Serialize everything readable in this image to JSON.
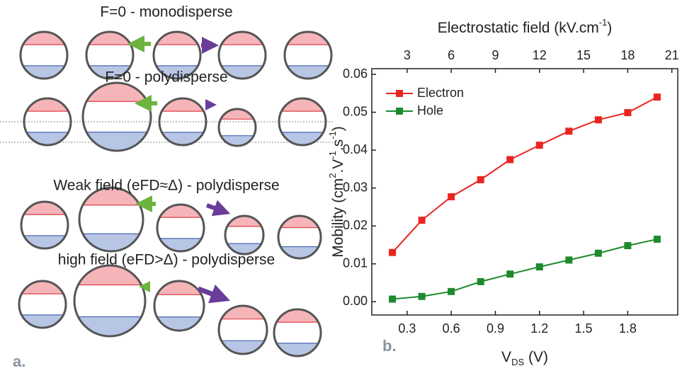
{
  "diagram": {
    "panel_label": "a.",
    "rows": [
      {
        "label": "F=0 - monodisperse"
      },
      {
        "label": "F=0 - polydisperse"
      },
      {
        "label": "Weak field (eFD≈Δ) - polydisperse"
      },
      {
        "label": "high field (eFD>Δ) - polydisperse"
      }
    ]
  },
  "chart_data": {
    "type": "line",
    "panel_label": "b.",
    "xlabel_parts": [
      "V",
      "DS",
      " (V)"
    ],
    "ylabel_parts": [
      "Mobility (cm",
      "2",
      ".V",
      "-1",
      ".s",
      "-1",
      ")"
    ],
    "x2label_parts": [
      "Electrostatic field (kV.cm",
      "-1",
      ")"
    ],
    "x": [
      0.2,
      0.4,
      0.6,
      0.8,
      1.0,
      1.2,
      1.4,
      1.6,
      1.8,
      2.0
    ],
    "series": [
      {
        "name": "Electron",
        "color": "#e8261f",
        "values": [
          0.013,
          0.0215,
          0.0277,
          0.0322,
          0.0375,
          0.0413,
          0.045,
          0.048,
          0.0499,
          0.054
        ]
      },
      {
        "name": "Hole",
        "color": "#1e8a2e",
        "values": [
          0.0007,
          0.0014,
          0.0027,
          0.0053,
          0.0073,
          0.0092,
          0.011,
          0.0128,
          0.0148,
          0.0165
        ]
      }
    ],
    "xlim": [
      0.06,
      2.14
    ],
    "xticks": [
      0.3,
      0.6,
      0.9,
      1.2,
      1.5,
      1.8
    ],
    "x2lim": [
      0.6,
      21.4
    ],
    "x2ticks": [
      3,
      6,
      9,
      12,
      15,
      18,
      21
    ],
    "ylim": [
      -0.0035,
      0.0615
    ],
    "yticks": [
      {
        "value": 0,
        "label": "0.00"
      },
      {
        "value": 0.01,
        "label": "0.01"
      },
      {
        "value": 0.02,
        "label": "0.02"
      },
      {
        "value": 0.03,
        "label": "0.03"
      },
      {
        "value": 0.04,
        "label": "0.04"
      },
      {
        "value": 0.05,
        "label": "0.05"
      },
      {
        "value": 0.06,
        "label": "0.06"
      }
    ],
    "legend": "upper-left"
  }
}
